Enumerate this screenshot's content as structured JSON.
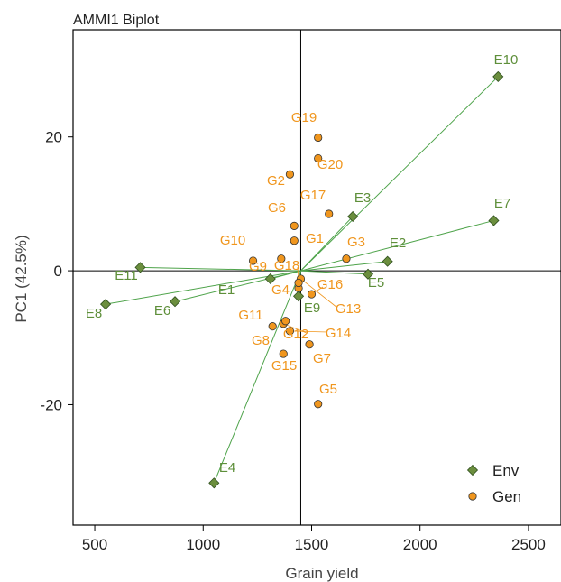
{
  "chart_data": {
    "type": "scatter",
    "title": "AMMI1 Biplot",
    "xlabel": "Grain yield",
    "ylabel": "PC1 (42.5%)",
    "xlim": [
      400,
      2650
    ],
    "ylim": [
      -38,
      36
    ],
    "xticks": [
      500,
      1000,
      1500,
      2000,
      2500
    ],
    "yticks": [
      20,
      0,
      -20
    ],
    "grand_mean": 1450,
    "colors": {
      "env": "#6b8e3e",
      "env_line": "#4ea34a",
      "env_label": "#5e8f3a",
      "gen": "#f0961e",
      "gen_label": "#f0961e",
      "gen_leader": "#f0961e"
    },
    "legend": {
      "position": "bottom-right",
      "items": [
        {
          "label": "Env",
          "marker": "diamond"
        },
        {
          "label": "Gen",
          "marker": "circle"
        }
      ]
    },
    "series": [
      {
        "name": "Env",
        "marker": "diamond",
        "points": [
          {
            "label": "E1",
            "x": 1310,
            "y": -1.2
          },
          {
            "label": "E2",
            "x": 1850,
            "y": 1.4
          },
          {
            "label": "E3",
            "x": 1690,
            "y": 8.1
          },
          {
            "label": "E4",
            "x": 1050,
            "y": -31.7
          },
          {
            "label": "E5",
            "x": 1760,
            "y": -0.5
          },
          {
            "label": "E6",
            "x": 870,
            "y": -4.6
          },
          {
            "label": "E7",
            "x": 2340,
            "y": 7.5
          },
          {
            "label": "E8",
            "x": 550,
            "y": -5.0
          },
          {
            "label": "E9",
            "x": 1440,
            "y": -3.8
          },
          {
            "label": "E10",
            "x": 2360,
            "y": 29.0
          },
          {
            "label": "E11",
            "x": 710,
            "y": 0.5
          }
        ]
      },
      {
        "name": "Gen",
        "marker": "circle",
        "points": [
          {
            "label": "G1",
            "x": 1420,
            "y": 4.5
          },
          {
            "label": "G2",
            "x": 1400,
            "y": 14.4
          },
          {
            "label": "G3",
            "x": 1660,
            "y": 1.8
          },
          {
            "label": "G4",
            "x": 1440,
            "y": -2.6
          },
          {
            "label": "G5",
            "x": 1530,
            "y": -19.9
          },
          {
            "label": "G6",
            "x": 1420,
            "y": 6.7
          },
          {
            "label": "G7",
            "x": 1490,
            "y": -11.0
          },
          {
            "label": "G8",
            "x": 1370,
            "y": -12.4
          },
          {
            "label": "G9",
            "x": 1230,
            "y": 1.5
          },
          {
            "label": "G10",
            "x": 1360,
            "y": 1.8
          },
          {
            "label": "G11",
            "x": 1320,
            "y": -8.3
          },
          {
            "label": "G12",
            "x": 1370,
            "y": -7.9
          },
          {
            "label": "G13",
            "x": 1450,
            "y": -1.2
          },
          {
            "label": "G14",
            "x": 1400,
            "y": -9.0
          },
          {
            "label": "G15",
            "x": 1380,
            "y": -7.5
          },
          {
            "label": "G16",
            "x": 1500,
            "y": -3.5
          },
          {
            "label": "G17",
            "x": 1580,
            "y": 8.5
          },
          {
            "label": "G18",
            "x": 1440,
            "y": -1.8
          },
          {
            "label": "G19",
            "x": 1530,
            "y": 19.9
          },
          {
            "label": "G20",
            "x": 1530,
            "y": 16.8
          }
        ]
      }
    ]
  }
}
